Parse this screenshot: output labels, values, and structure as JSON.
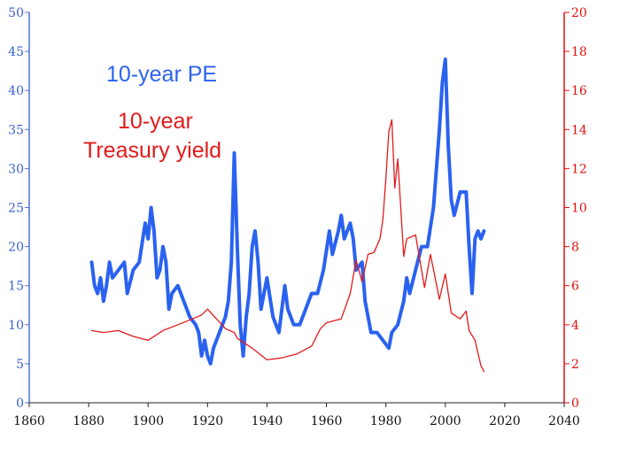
{
  "chart_data": {
    "type": "line",
    "title": "",
    "xlabel": "",
    "xlim": [
      1860,
      2040
    ],
    "x_ticks": [
      1860,
      1880,
      1900,
      1920,
      1940,
      1960,
      1980,
      2000,
      2020,
      2040
    ],
    "ylim_left": [
      0,
      50
    ],
    "y_ticks_left": [
      0,
      5,
      10,
      15,
      20,
      25,
      30,
      35,
      40,
      45,
      50
    ],
    "ylim_right": [
      0,
      20
    ],
    "y_ticks_right": [
      0,
      2,
      4,
      6,
      8,
      10,
      12,
      14,
      16,
      18,
      20
    ],
    "grid": false,
    "colors": {
      "pe": "#2a62f0",
      "yield": "#e21a1a",
      "left_axis": "#3a5fd6",
      "right_axis": "#e01010"
    },
    "series": [
      {
        "name": "10-year PE",
        "axis": "left",
        "x": [
          1881,
          1882,
          1883,
          1884,
          1885,
          1886,
          1887,
          1888,
          1890,
          1892,
          1893,
          1895,
          1897,
          1899,
          1900,
          1901,
          1902,
          1903,
          1904,
          1905,
          1906,
          1907,
          1908,
          1910,
          1912,
          1914,
          1916,
          1917,
          1918,
          1919,
          1920,
          1921,
          1922,
          1924,
          1926,
          1927,
          1928,
          1929,
          1930,
          1931,
          1932,
          1933,
          1934,
          1935,
          1936,
          1937,
          1938,
          1940,
          1942,
          1944,
          1946,
          1947,
          1949,
          1951,
          1953,
          1955,
          1957,
          1959,
          1961,
          1962,
          1964,
          1965,
          1966,
          1968,
          1969,
          1970,
          1972,
          1973,
          1975,
          1977,
          1979,
          1981,
          1982,
          1984,
          1986,
          1987,
          1988,
          1990,
          1992,
          1994,
          1996,
          1998,
          1999,
          2000,
          2001,
          2002,
          2003,
          2005,
          2007,
          2008,
          2009,
          2010,
          2011,
          2012,
          2013
        ],
        "values": [
          18,
          15,
          14,
          16,
          13,
          15,
          18,
          16,
          17,
          18,
          14,
          17,
          18,
          23,
          21,
          25,
          22,
          16,
          17,
          20,
          18,
          12,
          14,
          15,
          13,
          11,
          10,
          9,
          6,
          8,
          6,
          5,
          7,
          9,
          11,
          13,
          18,
          32,
          20,
          10,
          6,
          11,
          14,
          20,
          22,
          18,
          12,
          16,
          11,
          9,
          15,
          12,
          10,
          10,
          12,
          14,
          14,
          17,
          22,
          19,
          22,
          24,
          21,
          23,
          21,
          17,
          18,
          13,
          9,
          9,
          8,
          7,
          9,
          10,
          13,
          16,
          14,
          17,
          20,
          20,
          25,
          35,
          41,
          44,
          33,
          26,
          24,
          27,
          27,
          20,
          14,
          21,
          22,
          21,
          22
        ]
      },
      {
        "name": "10-year Treasury yield",
        "axis": "right",
        "x": [
          1881,
          1885,
          1890,
          1895,
          1900,
          1905,
          1910,
          1915,
          1918,
          1920,
          1923,
          1926,
          1929,
          1930,
          1935,
          1940,
          1945,
          1950,
          1955,
          1958,
          1960,
          1965,
          1968,
          1970,
          1972,
          1974,
          1976,
          1978,
          1979,
          1980,
          1981,
          1982,
          1983,
          1984,
          1986,
          1987,
          1990,
          1993,
          1995,
          1998,
          2000,
          2002,
          2005,
          2007,
          2008,
          2010,
          2012,
          2013
        ],
        "values": [
          3.7,
          3.6,
          3.7,
          3.4,
          3.2,
          3.7,
          4.0,
          4.3,
          4.5,
          4.8,
          4.3,
          3.8,
          3.6,
          3.3,
          2.8,
          2.2,
          2.3,
          2.5,
          2.9,
          3.8,
          4.1,
          4.3,
          5.6,
          7.3,
          6.2,
          7.6,
          7.7,
          8.4,
          9.4,
          11.5,
          13.9,
          14.5,
          11.0,
          12.5,
          7.5,
          8.4,
          8.6,
          5.9,
          7.6,
          5.3,
          6.6,
          4.6,
          4.3,
          4.7,
          3.7,
          3.2,
          1.9,
          1.6
        ]
      }
    ],
    "annotations": [
      {
        "text": "10-year PE"
      },
      {
        "text": "10-year"
      },
      {
        "text": "Treasury yield"
      }
    ]
  }
}
